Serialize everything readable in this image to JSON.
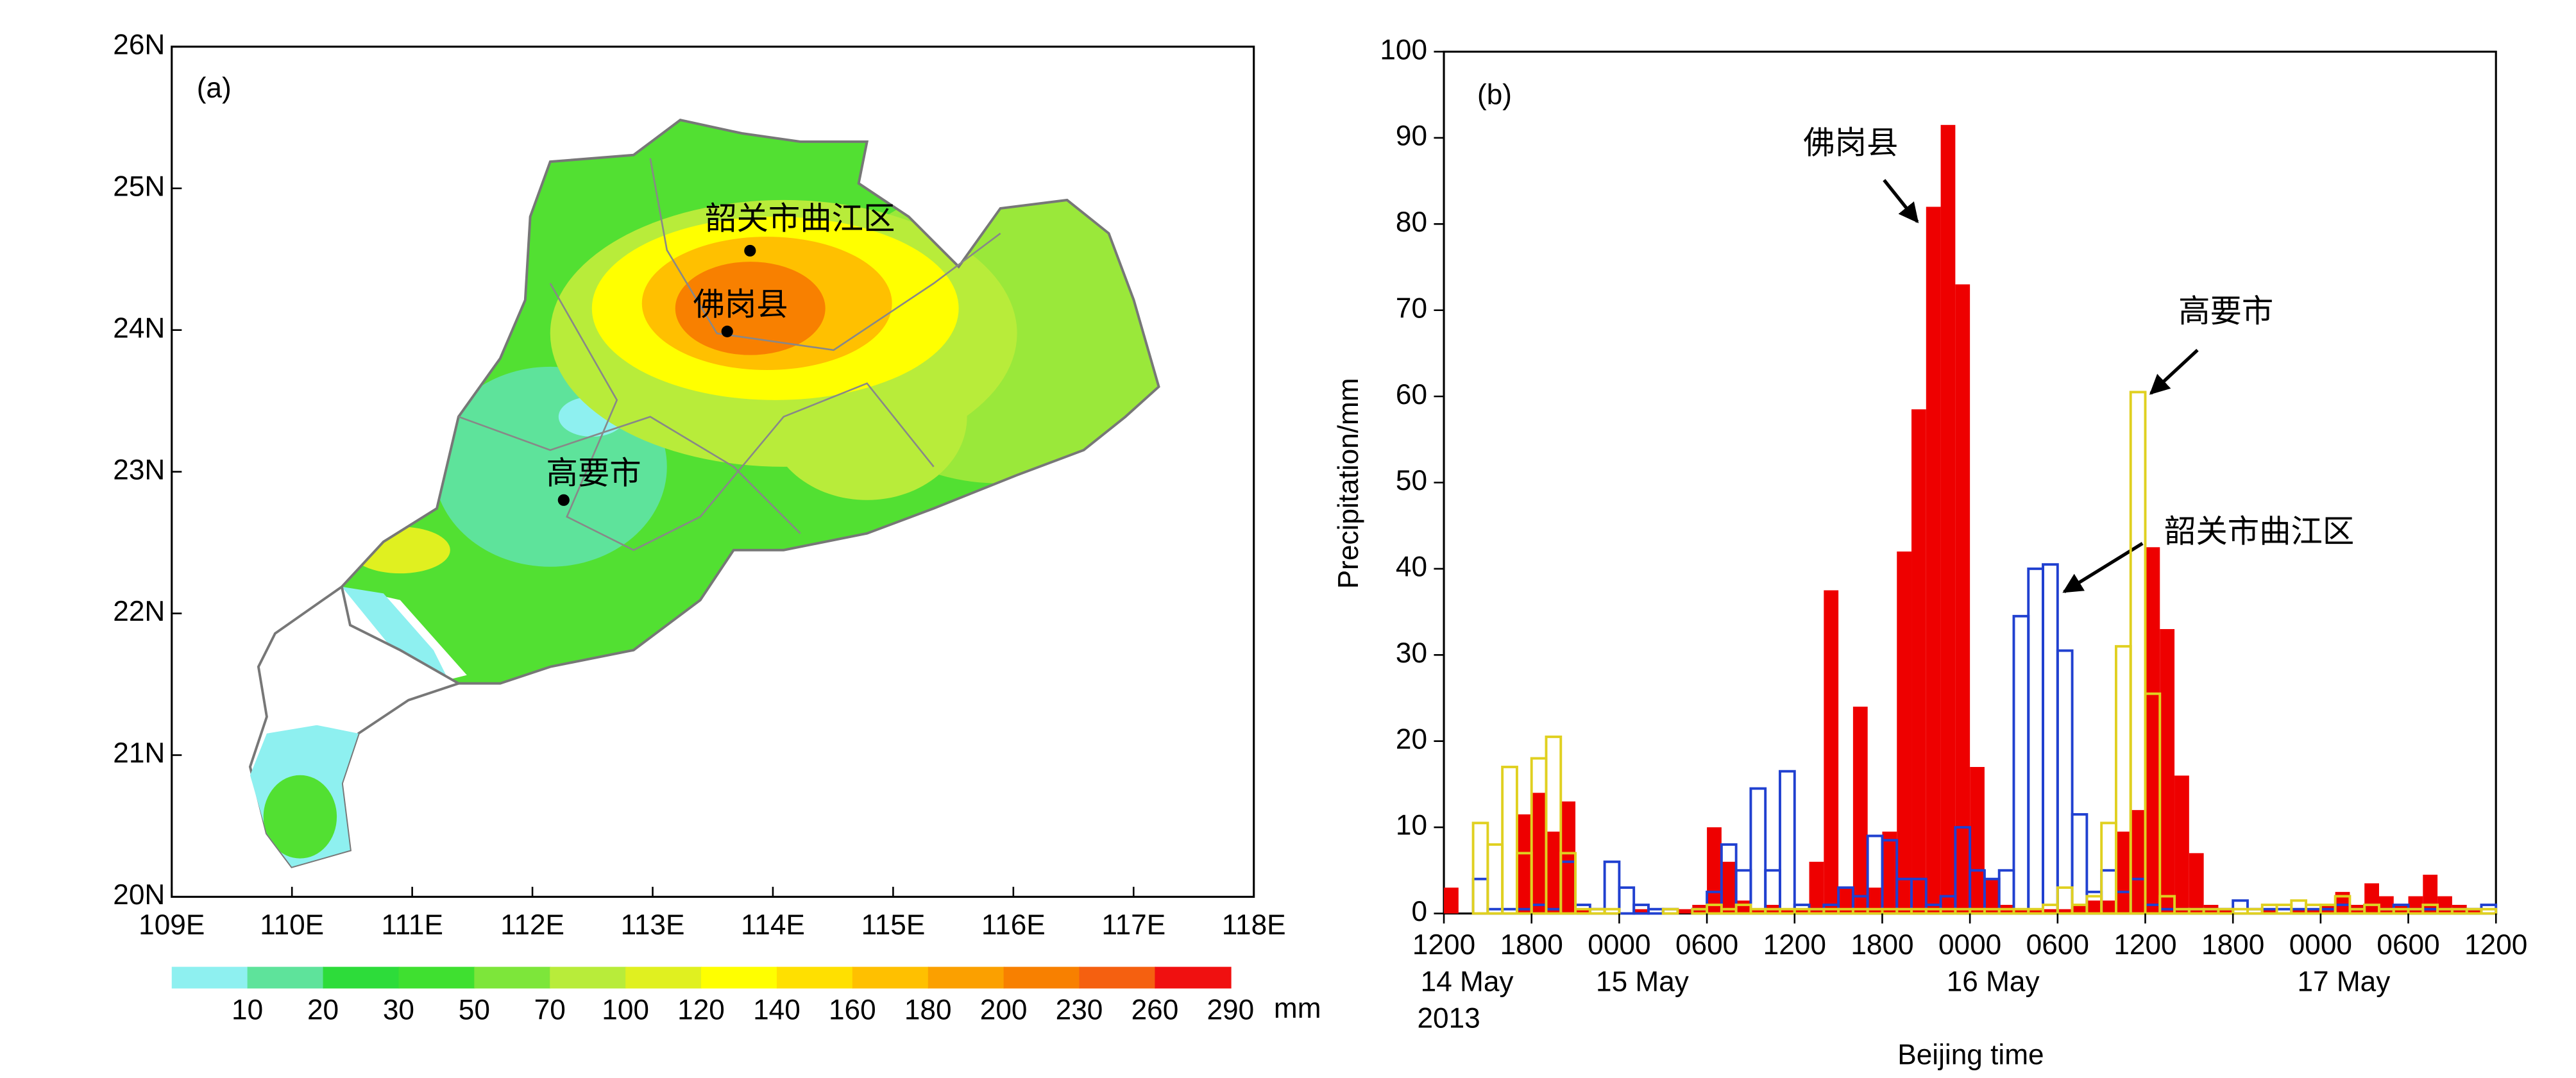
{
  "chart_data": [
    {
      "type": "map",
      "panel_label": "(a)",
      "xlim": [
        109,
        118
      ],
      "xticks": [
        {
          "value": 109,
          "label": "109E"
        },
        {
          "value": 110,
          "label": "110E"
        },
        {
          "value": 111,
          "label": "111E"
        },
        {
          "value": 112,
          "label": "112E"
        },
        {
          "value": 113,
          "label": "113E"
        },
        {
          "value": 114,
          "label": "114E"
        },
        {
          "value": 115,
          "label": "115E"
        },
        {
          "value": 116,
          "label": "116E"
        },
        {
          "value": 117,
          "label": "117E"
        },
        {
          "value": 118,
          "label": "118E"
        }
      ],
      "ylim": [
        20,
        26
      ],
      "yticks": [
        {
          "value": 20,
          "label": "20N"
        },
        {
          "value": 21,
          "label": "21N"
        },
        {
          "value": 22,
          "label": "22N"
        },
        {
          "value": 23,
          "label": "23N"
        },
        {
          "value": 24,
          "label": "24N"
        },
        {
          "value": 25,
          "label": "25N"
        },
        {
          "value": 26,
          "label": "26N"
        }
      ],
      "places": [
        {
          "name": "韶关市曲江区",
          "lon": 113.81,
          "lat": 24.56
        },
        {
          "name": "佛岗县",
          "lon": 113.62,
          "lat": 23.99
        },
        {
          "name": "高要市",
          "lon": 112.26,
          "lat": 22.8
        }
      ],
      "colorbar": {
        "bounds": [
          10,
          20,
          30,
          50,
          70,
          100,
          120,
          140,
          160,
          180,
          200,
          230,
          260,
          290
        ],
        "colors": [
          "#8ef0f0",
          "#5ee39b",
          "#2ddc3a",
          "#3fe030",
          "#7de63a",
          "#b8ec3a",
          "#e0f020",
          "#ffff00",
          "#ffe000",
          "#ffc000",
          "#fba000",
          "#f88000",
          "#f56010",
          "#f01010"
        ],
        "unit": "mm"
      }
    },
    {
      "type": "histogram",
      "panel_label": "(b)",
      "xlabel": "Beijing time",
      "ylabel": "Precipitation/mm",
      "bins": [
        0,
        1,
        2,
        3,
        4,
        5,
        6,
        7,
        8,
        9,
        10,
        11,
        12,
        13,
        14,
        15,
        16,
        17,
        18,
        19,
        20,
        21,
        22,
        23,
        24,
        25,
        26,
        27,
        28,
        29,
        30,
        31,
        32,
        33,
        34,
        35,
        36,
        37,
        38,
        39,
        40,
        41,
        42,
        43,
        44,
        45,
        46,
        47,
        48,
        49,
        50,
        51,
        52,
        53,
        54,
        55,
        56,
        57,
        58,
        59,
        60,
        61,
        62,
        63,
        64,
        65,
        66,
        67,
        68,
        69,
        70,
        71,
        72
      ],
      "xlim": [
        0,
        72
      ],
      "xticks": [
        {
          "value": 0,
          "label": "1200"
        },
        {
          "value": 6,
          "label": "1800"
        },
        {
          "value": 12,
          "label": "0000"
        },
        {
          "value": 18,
          "label": "0600"
        },
        {
          "value": 24,
          "label": "1200"
        },
        {
          "value": 30,
          "label": "1800"
        },
        {
          "value": 36,
          "label": "0000"
        },
        {
          "value": 42,
          "label": "0600"
        },
        {
          "value": 48,
          "label": "1200"
        },
        {
          "value": 54,
          "label": "1800"
        },
        {
          "value": 60,
          "label": "0000"
        },
        {
          "value": 66,
          "label": "0600"
        },
        {
          "value": 72,
          "label": "1200"
        }
      ],
      "date_labels": [
        {
          "value": 0,
          "label": "14 May"
        },
        {
          "value": 12,
          "label": "15 May"
        },
        {
          "value": 36,
          "label": "16 May"
        },
        {
          "value": 60,
          "label": "17 May"
        }
      ],
      "year_label": "2013",
      "ylim": [
        0,
        100
      ],
      "yticks": [
        0,
        10,
        20,
        30,
        40,
        50,
        60,
        70,
        80,
        90,
        100
      ],
      "series": [
        {
          "name": "佛岗县",
          "color": "#ee0000",
          "filled": true,
          "values": [
            3,
            0,
            0,
            0,
            0,
            11.5,
            14,
            9.5,
            13,
            0.5,
            0,
            0,
            0,
            0.5,
            0,
            0,
            0.5,
            1,
            10,
            6,
            1.5,
            0.5,
            1,
            0.5,
            0.5,
            6,
            37.5,
            3,
            24,
            3,
            9.5,
            42,
            58.5,
            82,
            91.5,
            73,
            17,
            4,
            1,
            0.5,
            0.5,
            0.5,
            0.5,
            1,
            1.5,
            1.5,
            9.5,
            12,
            42.5,
            33,
            16,
            7,
            1,
            0.5,
            0,
            0,
            0.5,
            0,
            0.5,
            0.5,
            1,
            2.5,
            1,
            3.5,
            2,
            1,
            2,
            4.5,
            2,
            1,
            0.5,
            0
          ]
        },
        {
          "name": "韶关市曲江区",
          "color": "#2040d0",
          "filled": false,
          "values": [
            0,
            0,
            4,
            0.5,
            0.5,
            0.5,
            1,
            0.5,
            6,
            1,
            0.5,
            6,
            3,
            1,
            0.5,
            0.5,
            0,
            0.5,
            2.5,
            8,
            5,
            14.5,
            5,
            16.5,
            1,
            0.5,
            1,
            3,
            2,
            9,
            8.5,
            4,
            4,
            1,
            2,
            10,
            5,
            4,
            5,
            34.5,
            40,
            40.5,
            30.5,
            11.5,
            2.5,
            5,
            2.5,
            4,
            1,
            0.5,
            0.5,
            0.5,
            0.5,
            0.5,
            1.5,
            0.5,
            0.5,
            0.5,
            0.5,
            0.5,
            0.5,
            1,
            0.5,
            1,
            0.5,
            1,
            0.5,
            0.5,
            0.5,
            0.5,
            0.5,
            1
          ]
        },
        {
          "name": "高要市",
          "color": "#e0d020",
          "filled": false,
          "values": [
            0,
            0,
            10.5,
            8,
            17,
            7,
            18,
            20.5,
            7,
            0.5,
            0.5,
            0.5,
            0,
            0,
            0,
            0.5,
            0,
            0.5,
            1,
            0.5,
            1,
            0.5,
            0.5,
            0.5,
            0.5,
            0.5,
            0.5,
            0.5,
            0.5,
            0.5,
            0.5,
            0.5,
            0.5,
            0.5,
            0.5,
            0.5,
            0.5,
            0.5,
            0.5,
            0.5,
            0.5,
            1,
            3,
            1,
            2,
            10.5,
            31,
            60.5,
            25.5,
            2,
            0.5,
            0.5,
            0.5,
            0.5,
            0.5,
            0.5,
            1,
            1,
            1.5,
            1,
            1,
            2,
            0.5,
            1,
            0.5,
            0.5,
            0.5,
            1,
            0.5,
            0.5,
            0.5,
            0.5
          ]
        }
      ]
    }
  ]
}
